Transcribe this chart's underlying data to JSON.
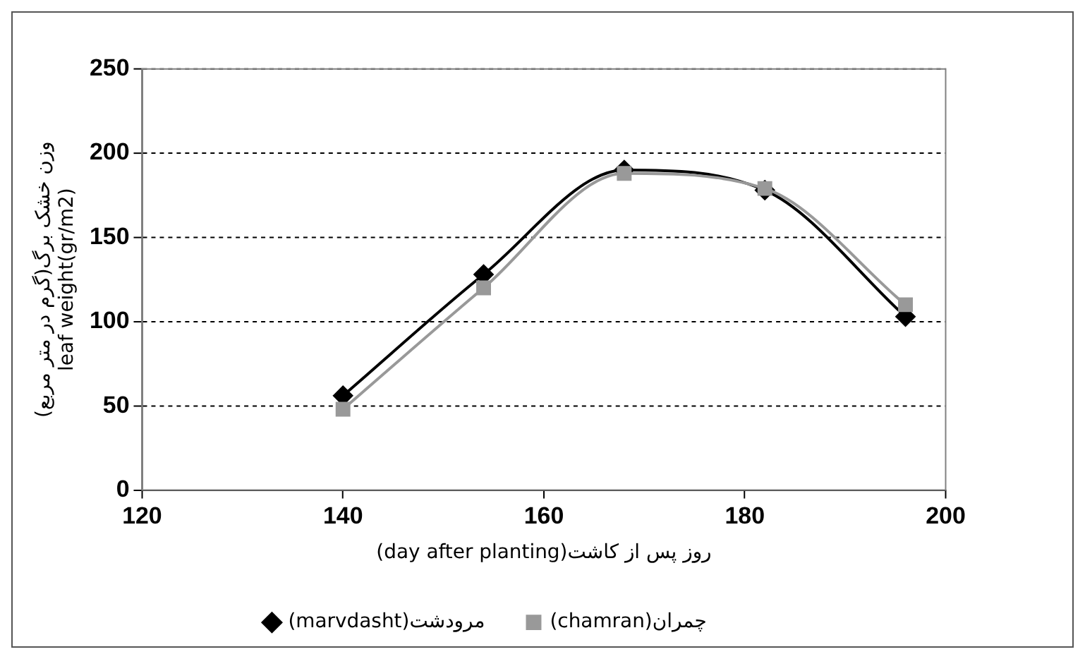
{
  "chart_data": {
    "type": "line",
    "xlabel": "(day after planting)روز پس از کاشت",
    "ylabel": "وزن خشک برگ(گرم در متر مربع)\nleaf weight(gr/m2)",
    "x": [
      140,
      154,
      168,
      182,
      196
    ],
    "series": [
      {
        "name": "(marvdasht)مرودشت",
        "color": "#000000",
        "marker": "diamond",
        "values": [
          56,
          128,
          190,
          178,
          103
        ]
      },
      {
        "name": "(chamran)چمران",
        "color": "#999999",
        "marker": "square",
        "values": [
          48,
          120,
          188,
          179,
          110
        ]
      }
    ],
    "xlim": [
      120,
      200
    ],
    "xticks": [
      120,
      140,
      160,
      180,
      200
    ],
    "ylim": [
      0,
      250
    ],
    "yticks": [
      0,
      50,
      100,
      150,
      200,
      250
    ],
    "grid": "y",
    "legend": "bottom",
    "line_style": "solid"
  }
}
